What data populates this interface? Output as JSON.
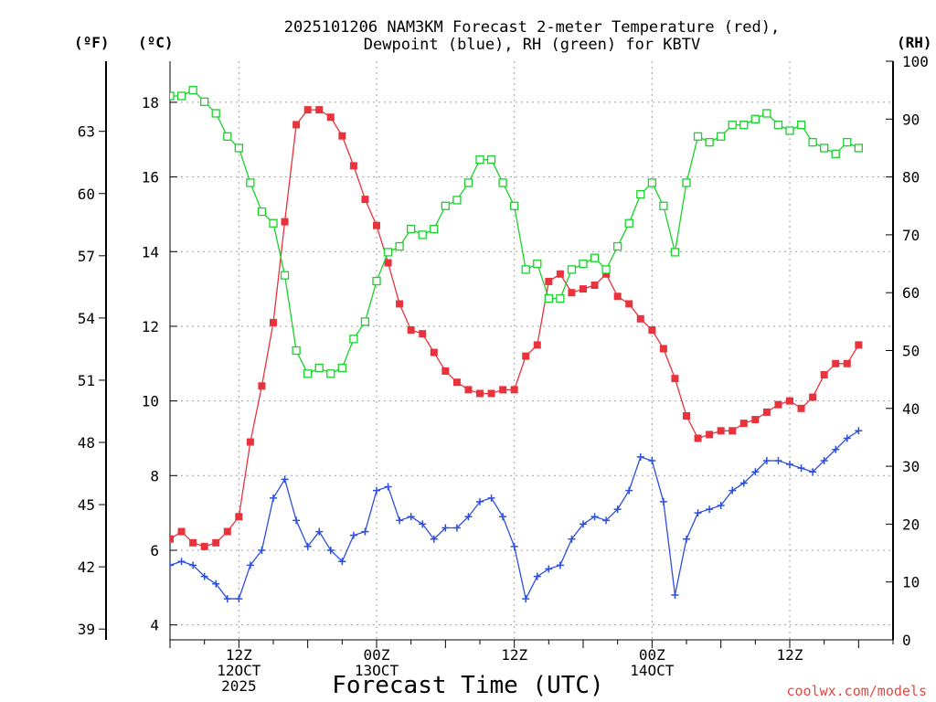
{
  "chart_data": {
    "type": "line",
    "title_line1": "2025101206 NAM3KM Forecast 2-meter Temperature (red),",
    "title_line2": "Dewpoint (blue), RH (green) for KBTV",
    "xlabel": "Forecast Time (UTC)",
    "credit": "coolwx.com/models",
    "units": {
      "fahrenheit": "(ºF)",
      "celsius": "(ºC)",
      "rh": "(RH)"
    },
    "x_hours_range": [
      0,
      63
    ],
    "ylim_celsius": [
      3.6,
      19.1
    ],
    "ylim_rh": [
      0,
      100
    ],
    "celsius_ticks": [
      4,
      6,
      8,
      10,
      12,
      14,
      16,
      18
    ],
    "fahrenheit_ticks": [
      39,
      42,
      45,
      48,
      51,
      54,
      57,
      60,
      63
    ],
    "rh_ticks": [
      0,
      10,
      20,
      30,
      40,
      50,
      60,
      70,
      80,
      90,
      100
    ],
    "x_ticks": [
      {
        "hour": 6,
        "line1": "12Z",
        "line2": "12OCT",
        "line3": "2025"
      },
      {
        "hour": 18,
        "line1": "00Z",
        "line2": "13OCT",
        "line3": ""
      },
      {
        "hour": 30,
        "line1": "12Z",
        "line2": "",
        "line3": ""
      },
      {
        "hour": 42,
        "line1": "00Z",
        "line2": "14OCT",
        "line3": ""
      },
      {
        "hour": 54,
        "line1": "12Z",
        "line2": "",
        "line3": ""
      }
    ],
    "series": [
      {
        "name": "2-meter Temperature",
        "unit": "C",
        "color": "#e8323c",
        "marker": "filled-square",
        "values": [
          6.3,
          6.5,
          6.2,
          6.1,
          6.2,
          6.5,
          6.9,
          8.9,
          10.4,
          12.1,
          14.8,
          17.4,
          17.8,
          17.8,
          17.6,
          17.1,
          16.3,
          15.4,
          14.7,
          13.7,
          12.6,
          11.9,
          11.8,
          11.3,
          10.8,
          10.5,
          10.3,
          10.2,
          10.2,
          10.3,
          10.3,
          11.2,
          11.5,
          13.2,
          13.4,
          12.9,
          13.0,
          13.1,
          13.4,
          12.8,
          12.6,
          12.2,
          11.9,
          11.4,
          10.6,
          9.6,
          9.0,
          9.1,
          9.2,
          9.2,
          9.4,
          9.5,
          9.7,
          9.9,
          10.0,
          9.8,
          10.1,
          10.7,
          11.0,
          11.0,
          11.5
        ]
      },
      {
        "name": "Dewpoint",
        "unit": "C",
        "color": "#2b4fe0",
        "marker": "plus",
        "values": [
          5.6,
          5.7,
          5.6,
          5.3,
          5.1,
          4.7,
          4.7,
          5.6,
          6.0,
          7.4,
          7.9,
          6.8,
          6.1,
          6.5,
          6.0,
          5.7,
          6.4,
          6.5,
          7.6,
          7.7,
          6.8,
          6.9,
          6.7,
          6.3,
          6.6,
          6.6,
          6.9,
          7.3,
          7.4,
          6.9,
          6.1,
          4.7,
          5.3,
          5.5,
          5.6,
          6.3,
          6.7,
          6.9,
          6.8,
          7.1,
          7.6,
          8.5,
          8.4,
          7.3,
          4.8,
          6.3,
          7.0,
          7.1,
          7.2,
          7.6,
          7.8,
          8.1,
          8.4,
          8.4,
          8.3,
          8.2,
          8.1,
          8.4,
          8.7,
          9.0,
          9.2
        ]
      },
      {
        "name": "Relative Humidity",
        "unit": "%",
        "color": "#18d22a",
        "marker": "open-square",
        "values": [
          94,
          94,
          95,
          93,
          91,
          87,
          85,
          79,
          74,
          72,
          63,
          50,
          46,
          47,
          46,
          47,
          52,
          55,
          62,
          67,
          68,
          71,
          70,
          71,
          75,
          76,
          79,
          83,
          83,
          79,
          75,
          64,
          65,
          59,
          59,
          64,
          65,
          66,
          64,
          68,
          72,
          77,
          79,
          75,
          67,
          79,
          87,
          86,
          87,
          89,
          89,
          90,
          91,
          89,
          88,
          89,
          86,
          85,
          84,
          86,
          85
        ]
      }
    ]
  }
}
